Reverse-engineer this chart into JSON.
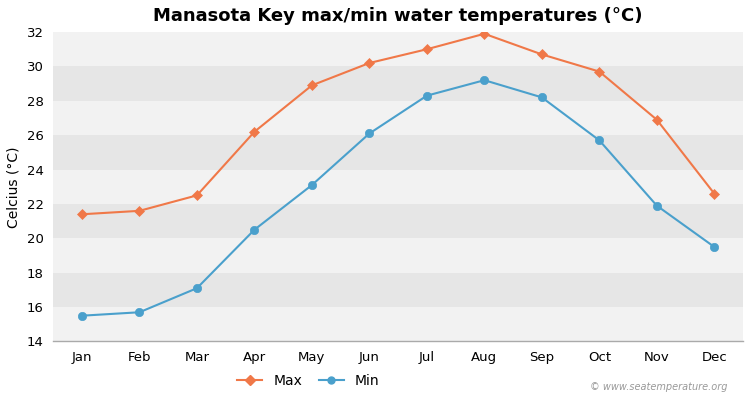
{
  "title": "Manasota Key max/min water temperatures (°C)",
  "ylabel": "Celcius (°C)",
  "months": [
    "Jan",
    "Feb",
    "Mar",
    "Apr",
    "May",
    "Jun",
    "Jul",
    "Aug",
    "Sep",
    "Oct",
    "Nov",
    "Dec"
  ],
  "max_temps": [
    21.4,
    21.6,
    22.5,
    26.2,
    28.9,
    30.2,
    31.0,
    31.9,
    30.7,
    29.7,
    26.9,
    22.6
  ],
  "min_temps": [
    15.5,
    15.7,
    17.1,
    20.5,
    23.1,
    26.1,
    28.3,
    29.2,
    28.2,
    25.7,
    21.9,
    19.5
  ],
  "max_color": "#f07848",
  "min_color": "#4aa0cc",
  "ylim": [
    14,
    32
  ],
  "yticks": [
    14,
    16,
    18,
    20,
    22,
    24,
    26,
    28,
    30,
    32
  ],
  "bg_color": "#ffffff",
  "band_color_light": "#f2f2f2",
  "band_color_dark": "#e6e6e6",
  "title_fontsize": 13,
  "axis_label_fontsize": 10,
  "tick_fontsize": 9.5,
  "watermark": "© www.seatemperature.org",
  "legend_labels": [
    "Max",
    "Min"
  ]
}
